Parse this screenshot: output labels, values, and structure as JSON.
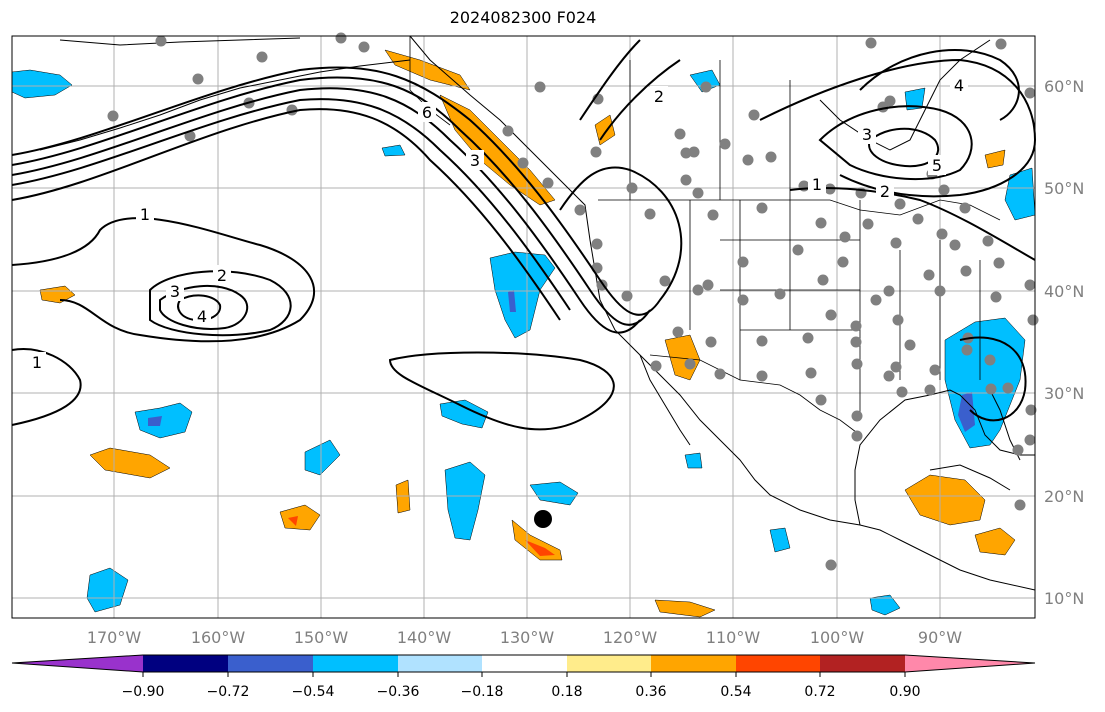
{
  "title": "2024082300 F024",
  "lon_labels": [
    "170°W",
    "160°W",
    "150°W",
    "140°W",
    "130°W",
    "120°W",
    "110°W",
    "100°W",
    "90°W"
  ],
  "lat_labels": [
    "60°N",
    "50°N",
    "40°N",
    "30°N",
    "20°N",
    "10°N"
  ],
  "colorbar": {
    "ticks": [
      "−0.90",
      "−0.72",
      "−0.54",
      "−0.36",
      "−0.18",
      "0.18",
      "0.36",
      "0.54",
      "0.72",
      "0.90"
    ],
    "colors": [
      "#9932CC",
      "#000080",
      "#3A5FCD",
      "#00BFFF",
      "#B0E2FF",
      "#FFFFFF",
      "#FFEC8B",
      "#FFA500",
      "#FF4500",
      "#B22222",
      "#FF88AA"
    ]
  },
  "contour_labels": [
    "6",
    "2",
    "4",
    "3",
    "5",
    "1",
    "1",
    "2",
    "3",
    "4",
    "1",
    "3",
    "2"
  ],
  "colors": {
    "positive_fill": "#FFA500",
    "negative_fill": "#00BFFF",
    "station_dot": "#808080",
    "contour": "#000000",
    "grid": "#b0b0b0"
  },
  "marker": "black-dot"
}
